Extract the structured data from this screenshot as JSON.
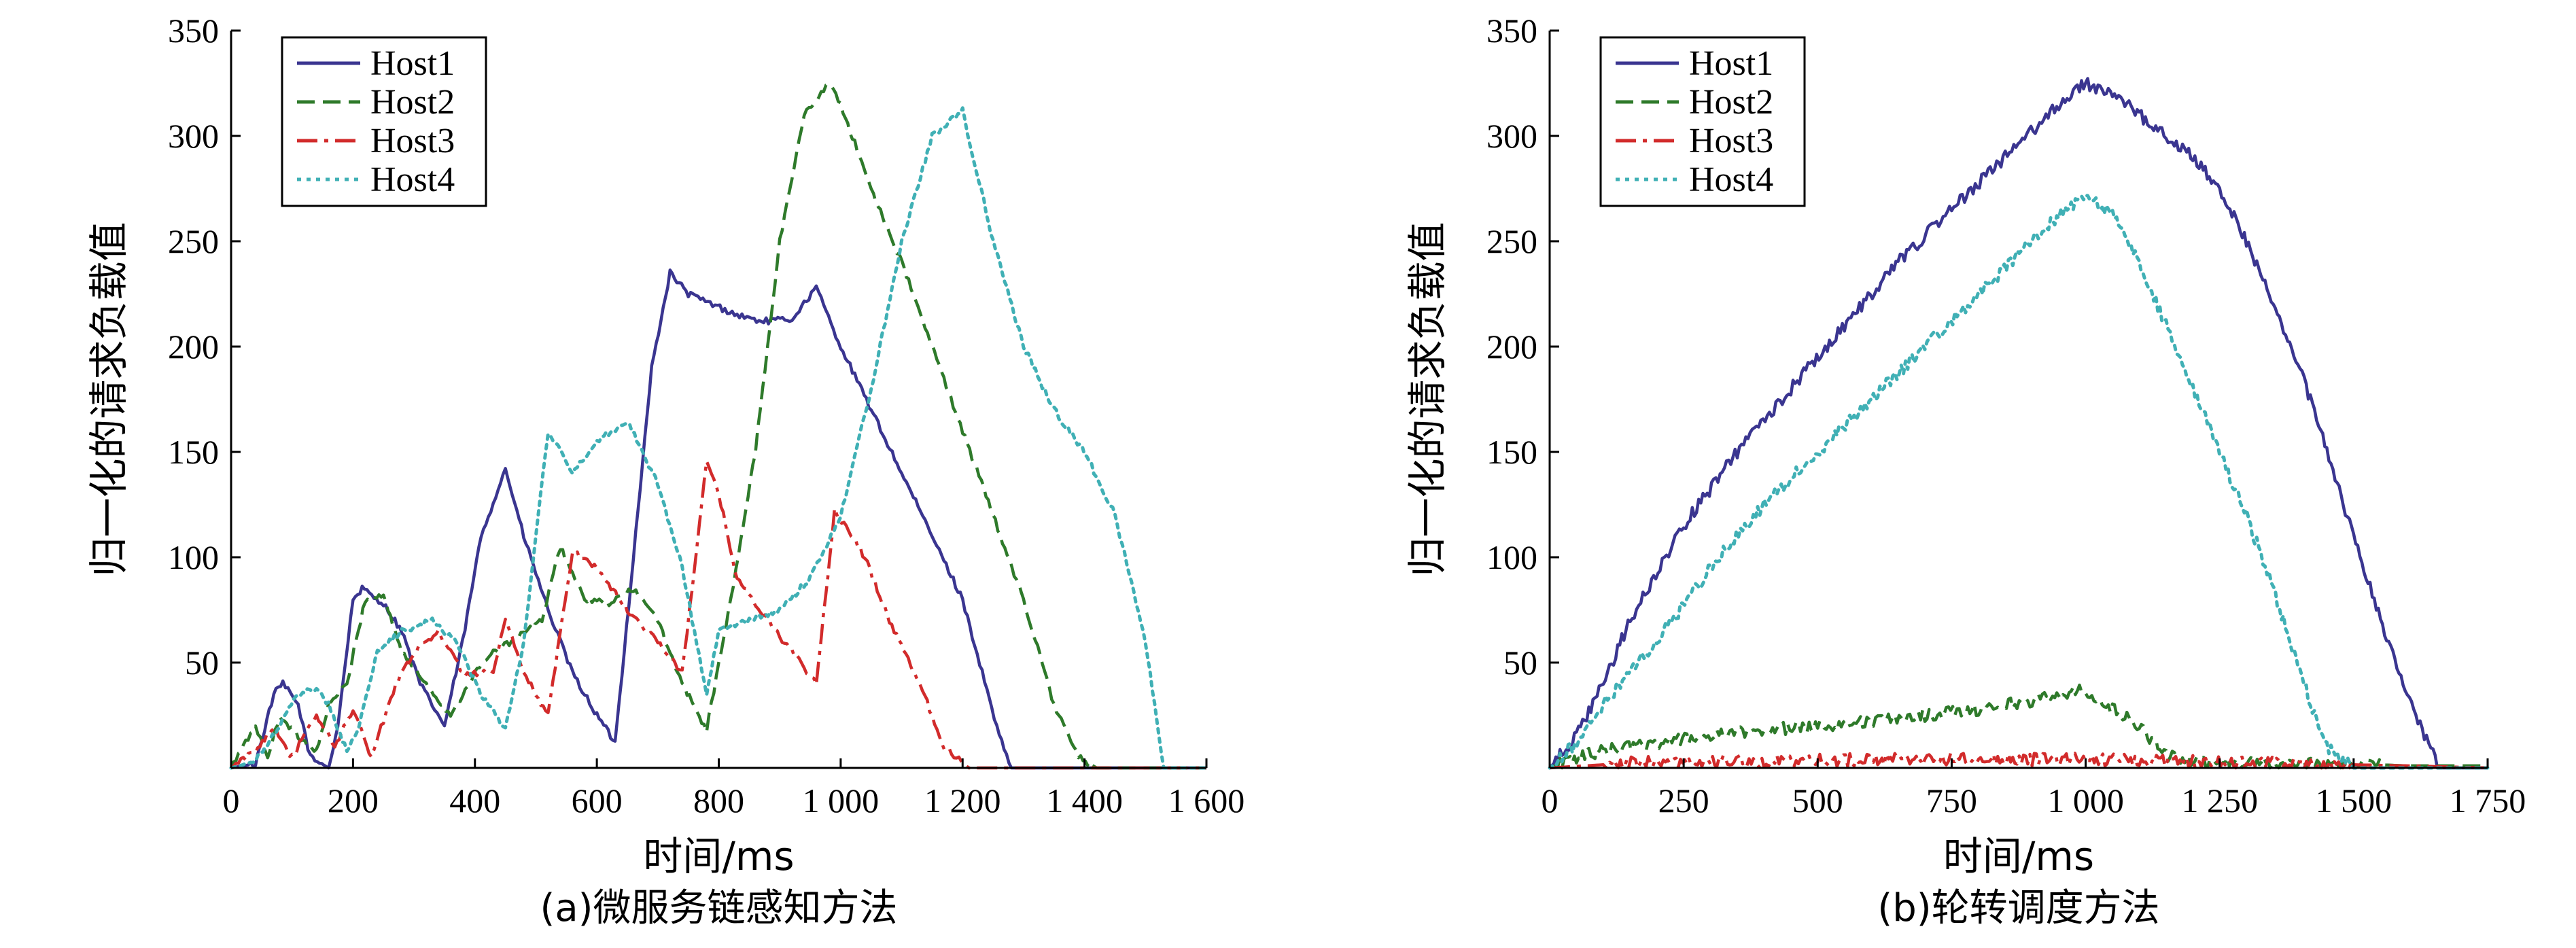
{
  "chart_data": [
    {
      "type": "line",
      "caption": "(a)微服务链感知方法",
      "xlabel": "时间/ms",
      "ylabel": "归一化的请求负载值",
      "xlim": [
        0,
        1600
      ],
      "ylim": [
        0,
        350
      ],
      "xticks": [
        0,
        200,
        400,
        600,
        800,
        1000,
        1200,
        1400,
        1600
      ],
      "xtick_labels": [
        "0",
        "200",
        "400",
        "600",
        "800",
        "1 000",
        "1 200",
        "1 400",
        "1 600"
      ],
      "yticks": [
        50,
        100,
        150,
        200,
        250,
        300,
        350
      ],
      "ytick_labels": [
        "50",
        "100",
        "150",
        "200",
        "250",
        "300",
        "350"
      ],
      "legend_position": "top-left",
      "series": [
        {
          "name": "Host1",
          "color": "#3a3590",
          "dash": "solid",
          "x": [
            0,
            40,
            70,
            85,
            110,
            130,
            160,
            175,
            200,
            215,
            250,
            280,
            310,
            350,
            380,
            410,
            450,
            480,
            520,
            560,
            600,
            630,
            660,
            690,
            720,
            750,
            790,
            830,
            870,
            920,
            960,
            1000,
            1050,
            1100,
            1150,
            1200,
            1260,
            1280,
            1600
          ],
          "y": [
            0,
            2,
            35,
            40,
            30,
            5,
            0,
            20,
            80,
            85,
            78,
            65,
            40,
            20,
            60,
            110,
            142,
            110,
            75,
            45,
            25,
            12,
            100,
            190,
            235,
            225,
            220,
            215,
            212,
            213,
            228,
            200,
            170,
            140,
            110,
            80,
            15,
            0,
            0
          ]
        },
        {
          "name": "Host2",
          "color": "#2e7a2a",
          "dash": "dashed",
          "x": [
            0,
            40,
            60,
            80,
            110,
            140,
            160,
            190,
            220,
            250,
            280,
            320,
            360,
            400,
            430,
            460,
            510,
            540,
            580,
            620,
            660,
            700,
            740,
            780,
            820,
            860,
            900,
            940,
            980,
            1000,
            1050,
            1100,
            1150,
            1200,
            1250,
            1300,
            1350,
            1390,
            1420,
            1600
          ],
          "y": [
            0,
            20,
            5,
            25,
            15,
            8,
            30,
            40,
            80,
            82,
            55,
            40,
            25,
            45,
            55,
            60,
            70,
            105,
            80,
            78,
            85,
            70,
            40,
            18,
            80,
            150,
            250,
            310,
            325,
            315,
            275,
            240,
            200,
            160,
            120,
            80,
            30,
            5,
            0,
            0
          ]
        },
        {
          "name": "Host3",
          "color": "#d22b2b",
          "dash": "dashdot",
          "x": [
            0,
            40,
            70,
            100,
            140,
            170,
            200,
            230,
            270,
            300,
            340,
            380,
            430,
            450,
            480,
            520,
            560,
            600,
            650,
            700,
            740,
            780,
            800,
            830,
            880,
            920,
            960,
            990,
            1040,
            1080,
            1130,
            1170,
            1210,
            1600
          ],
          "y": [
            0,
            8,
            20,
            5,
            25,
            10,
            28,
            5,
            40,
            55,
            65,
            45,
            45,
            70,
            45,
            25,
            103,
            95,
            75,
            60,
            45,
            145,
            130,
            90,
            70,
            55,
            40,
            122,
            100,
            70,
            40,
            10,
            0,
            0
          ]
        },
        {
          "name": "Host4",
          "color": "#40b0b5",
          "dash": "dotted",
          "x": [
            0,
            40,
            80,
            110,
            140,
            160,
            190,
            210,
            240,
            280,
            330,
            370,
            410,
            450,
            480,
            520,
            560,
            600,
            650,
            700,
            740,
            780,
            800,
            850,
            900,
            950,
            1000,
            1050,
            1100,
            1150,
            1200,
            1250,
            1300,
            1350,
            1400,
            1450,
            1500,
            1530,
            1600
          ],
          "y": [
            0,
            3,
            20,
            35,
            38,
            30,
            8,
            20,
            55,
            65,
            70,
            60,
            35,
            18,
            60,
            160,
            140,
            155,
            165,
            135,
            95,
            35,
            65,
            70,
            75,
            90,
            120,
            180,
            250,
            300,
            312,
            250,
            200,
            170,
            150,
            120,
            60,
            0,
            0
          ]
        }
      ]
    },
    {
      "type": "line",
      "caption": "(b)轮转调度方法",
      "xlabel": "时间/ms",
      "ylabel": "归一化的请求负载值",
      "xlim": [
        0,
        1750
      ],
      "ylim": [
        0,
        350
      ],
      "xticks": [
        0,
        250,
        500,
        750,
        1000,
        1250,
        1500,
        1750
      ],
      "xtick_labels": [
        "0",
        "250",
        "500",
        "750",
        "1 000",
        "1 250",
        "1 500",
        "1 750"
      ],
      "yticks": [
        50,
        100,
        150,
        200,
        250,
        300,
        350
      ],
      "ytick_labels": [
        "50",
        "100",
        "150",
        "200",
        "250",
        "300",
        "350"
      ],
      "legend_position": "top-left",
      "series": [
        {
          "name": "Host1",
          "color": "#3a3590",
          "dash": "solid",
          "x": [
            0,
            50,
            100,
            150,
            250,
            350,
            450,
            550,
            650,
            750,
            850,
            950,
            1000,
            1050,
            1100,
            1150,
            1200,
            1250,
            1300,
            1350,
            1400,
            1450,
            1500,
            1550,
            1600,
            1660,
            1750
          ],
          "y": [
            0,
            15,
            40,
            70,
            115,
            150,
            180,
            210,
            240,
            265,
            290,
            315,
            325,
            320,
            310,
            300,
            290,
            275,
            250,
            220,
            190,
            150,
            110,
            70,
            35,
            0,
            0
          ]
        },
        {
          "name": "Host2",
          "color": "#2e7a2a",
          "dash": "dashed",
          "x": [
            0,
            50,
            100,
            200,
            300,
            400,
            500,
            600,
            700,
            800,
            900,
            950,
            1000,
            1050,
            1100,
            1150,
            1200,
            1300,
            1400,
            1500,
            1600,
            1750
          ],
          "y": [
            0,
            5,
            8,
            12,
            15,
            18,
            20,
            22,
            25,
            28,
            32,
            35,
            37,
            28,
            20,
            6,
            3,
            3,
            2,
            2,
            1,
            1
          ]
        },
        {
          "name": "Host3",
          "color": "#d22b2b",
          "dash": "dashdot",
          "x": [
            0,
            200,
            400,
            600,
            800,
            1000,
            1200,
            1400,
            1600,
            1750
          ],
          "y": [
            0,
            3,
            3,
            4,
            4,
            4,
            3,
            2,
            1,
            0
          ]
        },
        {
          "name": "Host4",
          "color": "#40b0b5",
          "dash": "dotted",
          "x": [
            0,
            50,
            100,
            200,
            300,
            400,
            500,
            600,
            700,
            800,
            900,
            950,
            1000,
            1050,
            1100,
            1150,
            1200,
            1250,
            1300,
            1350,
            1400,
            1450,
            1500,
            1750
          ],
          "y": [
            0,
            12,
            30,
            60,
            95,
            125,
            150,
            175,
            200,
            225,
            250,
            262,
            272,
            262,
            240,
            210,
            180,
            150,
            120,
            85,
            45,
            10,
            0,
            0
          ]
        }
      ]
    }
  ]
}
